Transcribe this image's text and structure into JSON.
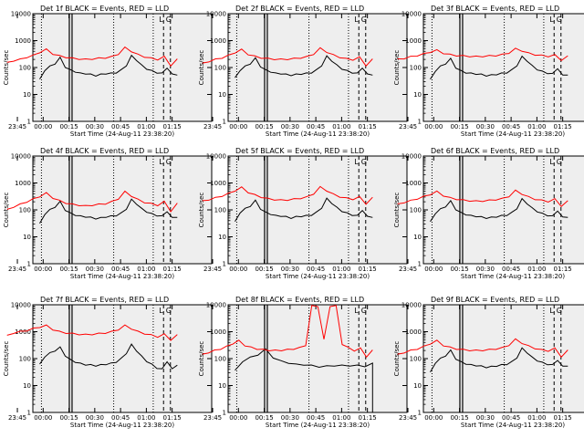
{
  "colors": {
    "panel_bg": "#eeeeee",
    "events": "#000000",
    "lld": "#ff0000",
    "frame": "#000000"
  },
  "x_ticks": [
    "23:45",
    "00:00",
    "00:15",
    "00:30",
    "00:45",
    "01:00",
    "01:15"
  ],
  "y_ticks": [
    "1",
    "10",
    "100",
    "1000",
    "10000"
  ],
  "chart_data": [
    {
      "type": "line",
      "title": "Det 1f BLACK = Events, RED = LLD",
      "xlabel": "Start Time (24-Aug-11 23:38:20)",
      "ylabel": "Counts/sec",
      "ylim": [
        1,
        10000
      ],
      "yscale": "log",
      "series": [
        {
          "name": "Events",
          "color": "black",
          "start": "23:58",
          "values": [
            35,
            80,
            110,
            140,
            230,
            105,
            80,
            70,
            60,
            60,
            55,
            50,
            55,
            60,
            60,
            65,
            80,
            120,
            270,
            190,
            120,
            90,
            75,
            65,
            60,
            100,
            55,
            55
          ]
        },
        {
          "name": "LLD",
          "color": "red",
          "start": "23:39",
          "values": [
            150,
            180,
            200,
            240,
            280,
            370,
            470,
            320,
            270,
            240,
            220,
            210,
            200,
            210,
            220,
            230,
            250,
            320,
            550,
            400,
            300,
            250,
            220,
            200,
            250,
            120,
            200
          ]
        }
      ],
      "annotations": {
        "vlines_dotted": [
          "23:59",
          "00:41",
          "01:04"
        ],
        "vlines_solid": [
          "00:16"
        ],
        "vlines_dashed": [
          "01:10",
          "01:14"
        ],
        "letters": [
          "L",
          "G"
        ]
      }
    },
    {
      "type": "line",
      "title": "Det 2f BLACK = Events, RED = LLD",
      "xlabel": "Start Time (24-Aug-11 23:38:20)",
      "ylabel": "Counts/sec",
      "ylim": [
        1,
        10000
      ],
      "yscale": "log",
      "series": [
        {
          "name": "Events",
          "color": "black",
          "start": "23:58",
          "values": [
            40,
            80,
            110,
            140,
            220,
            110,
            80,
            70,
            60,
            60,
            55,
            52,
            55,
            58,
            60,
            65,
            80,
            120,
            260,
            180,
            120,
            90,
            75,
            65,
            60,
            100,
            55,
            55
          ]
        },
        {
          "name": "LLD",
          "color": "red",
          "start": "23:39",
          "values": [
            140,
            170,
            200,
            230,
            280,
            360,
            460,
            310,
            260,
            230,
            215,
            205,
            200,
            205,
            215,
            230,
            250,
            320,
            520,
            380,
            290,
            240,
            210,
            195,
            240,
            120,
            200
          ]
        }
      ],
      "annotations": {
        "vlines_dotted": [
          "23:59",
          "00:41",
          "01:04"
        ],
        "vlines_solid": [
          "00:16"
        ],
        "vlines_dashed": [
          "01:10",
          "01:14"
        ],
        "letters": [
          "L",
          "G"
        ]
      }
    },
    {
      "type": "line",
      "title": "Det 3f BLACK = Events, RED = LLD",
      "xlabel": "Start Time (24-Aug-11 23:38:20)",
      "ylabel": "Counts/sec",
      "ylim": [
        1,
        10000
      ],
      "yscale": "log",
      "series": [
        {
          "name": "Events",
          "color": "black",
          "start": "23:58",
          "values": [
            35,
            75,
            110,
            140,
            210,
            100,
            75,
            65,
            60,
            58,
            55,
            50,
            52,
            56,
            60,
            65,
            80,
            120,
            250,
            180,
            115,
            85,
            70,
            62,
            58,
            95,
            50,
            55
          ]
        },
        {
          "name": "LLD",
          "color": "red",
          "start": "23:39",
          "values": [
            200,
            220,
            250,
            280,
            320,
            380,
            440,
            340,
            300,
            280,
            270,
            260,
            255,
            260,
            270,
            280,
            300,
            350,
            500,
            420,
            340,
            300,
            280,
            260,
            290,
            190,
            260
          ]
        }
      ],
      "annotations": {
        "vlines_dotted": [
          "23:59",
          "00:41",
          "01:04"
        ],
        "vlines_solid": [
          "00:16"
        ],
        "vlines_dashed": [
          "01:10",
          "01:14"
        ],
        "letters": [
          "L",
          "G"
        ]
      }
    },
    {
      "type": "line",
      "title": "Det 4f BLACK = Events, RED = LLD",
      "xlabel": "Start Time (24-Aug-11 23:38:20)",
      "ylabel": "Counts/sec",
      "ylim": [
        1,
        10000
      ],
      "yscale": "log",
      "series": [
        {
          "name": "Events",
          "color": "black",
          "start": "23:58",
          "values": [
            30,
            70,
            100,
            130,
            200,
            100,
            75,
            65,
            58,
            56,
            52,
            48,
            50,
            55,
            58,
            62,
            75,
            110,
            240,
            170,
            110,
            85,
            70,
            62,
            58,
            90,
            50,
            55
          ]
        },
        {
          "name": "LLD",
          "color": "red",
          "start": "23:39",
          "values": [
            100,
            130,
            160,
            200,
            250,
            320,
            420,
            280,
            220,
            180,
            160,
            150,
            140,
            150,
            160,
            170,
            200,
            260,
            470,
            330,
            240,
            190,
            170,
            150,
            200,
            90,
            170
          ]
        }
      ],
      "annotations": {
        "vlines_dotted": [
          "23:59",
          "00:41",
          "01:04"
        ],
        "vlines_solid": [
          "00:16"
        ],
        "vlines_dashed": [
          "01:10",
          "01:14"
        ],
        "letters": [
          "L",
          "G"
        ]
      }
    },
    {
      "type": "line",
      "title": "Det 5f BLACK = Events, RED = LLD",
      "xlabel": "Start Time (24-Aug-11 23:38:20)",
      "ylabel": "Counts/sec",
      "ylim": [
        1,
        10000
      ],
      "yscale": "log",
      "series": [
        {
          "name": "Events",
          "color": "black",
          "start": "23:58",
          "values": [
            35,
            80,
            110,
            140,
            220,
            110,
            80,
            70,
            60,
            60,
            55,
            50,
            55,
            58,
            60,
            65,
            80,
            120,
            260,
            180,
            120,
            90,
            75,
            65,
            60,
            100,
            55,
            55
          ]
        },
        {
          "name": "LLD",
          "color": "red",
          "start": "23:39",
          "values": [
            210,
            240,
            280,
            330,
            400,
            520,
            680,
            450,
            360,
            300,
            260,
            240,
            230,
            235,
            250,
            270,
            300,
            400,
            700,
            520,
            380,
            310,
            270,
            250,
            300,
            170,
            280
          ]
        }
      ],
      "annotations": {
        "vlines_dotted": [
          "23:59",
          "00:41",
          "01:04"
        ],
        "vlines_solid": [
          "00:16"
        ],
        "vlines_dashed": [
          "01:10",
          "01:14"
        ],
        "letters": [
          "L",
          "G"
        ]
      }
    },
    {
      "type": "line",
      "title": "Det 6f BLACK = Events, RED = LLD",
      "xlabel": "Start Time (24-Aug-11 23:38:20)",
      "ylabel": "Counts/sec",
      "ylim": [
        1,
        10000
      ],
      "yscale": "log",
      "series": [
        {
          "name": "Events",
          "color": "black",
          "start": "23:58",
          "values": [
            35,
            75,
            105,
            135,
            210,
            105,
            78,
            68,
            60,
            58,
            54,
            50,
            52,
            56,
            60,
            64,
            78,
            115,
            250,
            175,
            115,
            88,
            72,
            63,
            58,
            95,
            52,
            55
          ]
        },
        {
          "name": "LLD",
          "color": "red",
          "start": "23:39",
          "values": [
            160,
            190,
            220,
            260,
            310,
            380,
            480,
            340,
            280,
            250,
            230,
            220,
            210,
            215,
            225,
            240,
            260,
            320,
            520,
            390,
            300,
            250,
            225,
            205,
            250,
            140,
            210
          ]
        }
      ],
      "annotations": {
        "vlines_dotted": [
          "23:59",
          "00:41",
          "01:04"
        ],
        "vlines_solid": [
          "00:16"
        ],
        "vlines_dashed": [
          "01:10",
          "01:14"
        ],
        "letters": [
          "L",
          "G"
        ]
      }
    },
    {
      "type": "line",
      "title": "Det 7f BLACK = Events, RED = LLD",
      "xlabel": "Start Time (24-Aug-11 23:38:20)",
      "ylabel": "Counts/sec",
      "ylim": [
        1,
        10000
      ],
      "yscale": "log",
      "series": [
        {
          "name": "Events",
          "color": "black",
          "start": "23:58",
          "values": [
            60,
            120,
            160,
            200,
            260,
            130,
            90,
            75,
            65,
            60,
            58,
            55,
            58,
            62,
            66,
            75,
            100,
            160,
            330,
            200,
            120,
            80,
            60,
            45,
            40,
            80,
            40,
            60
          ]
        },
        {
          "name": "LLD",
          "color": "red",
          "start": "23:39",
          "values": [
            700,
            900,
            1000,
            1100,
            1300,
            1500,
            1700,
            1200,
            1000,
            900,
            850,
            800,
            780,
            800,
            850,
            900,
            1000,
            1200,
            1700,
            1300,
            1000,
            850,
            750,
            650,
            800,
            500,
            750
          ]
        }
      ],
      "annotations": {
        "vlines_dotted": [
          "23:59",
          "00:41",
          "01:04"
        ],
        "vlines_solid": [
          "00:16"
        ],
        "vlines_dashed": [
          "01:10",
          "01:14"
        ],
        "letters": [
          "L",
          "G"
        ]
      }
    },
    {
      "type": "line",
      "title": "Det 8f BLACK = Events, RED = LLD",
      "xlabel": "Start Time (24-Aug-11 23:38:20)",
      "ylabel": "Counts/sec",
      "ylim": [
        1,
        10000
      ],
      "yscale": "log",
      "series": [
        {
          "name": "Events",
          "color": "black",
          "start": "23:58",
          "values": [
            35,
            80,
            110,
            140,
            220,
            110,
            80,
            70,
            60,
            60,
            55,
            50,
            52,
            55,
            55,
            55,
            55,
            52,
            65
          ]
        },
        {
          "name": "LLD",
          "color": "red",
          "start": "23:39",
          "values": [
            140,
            170,
            200,
            230,
            280,
            360,
            460,
            310,
            260,
            230,
            215,
            205,
            200,
            205,
            215,
            230,
            250,
            320,
            9000,
            9000,
            500,
            9000,
            9000,
            350,
            250,
            200,
            240,
            120,
            200
          ]
        }
      ],
      "annotations": {
        "vlines_dotted": [
          "23:59",
          "00:41",
          "01:04"
        ],
        "vlines_solid": [
          "00:16"
        ],
        "vlines_dashed": [
          "01:10",
          "01:14"
        ],
        "letters": [
          "L",
          "G"
        ]
      }
    },
    {
      "type": "line",
      "title": "Det 9f BLACK = Events, RED = LLD",
      "xlabel": "Start Time (24-Aug-11 23:38:20)",
      "ylabel": "Counts/sec",
      "ylim": [
        1,
        10000
      ],
      "yscale": "log",
      "series": [
        {
          "name": "Events",
          "color": "black",
          "start": "23:58",
          "values": [
            30,
            70,
            100,
            130,
            200,
            100,
            75,
            65,
            58,
            56,
            52,
            48,
            50,
            54,
            58,
            62,
            75,
            110,
            240,
            170,
            110,
            85,
            70,
            62,
            58,
            90,
            50,
            55
          ]
        },
        {
          "name": "LLD",
          "color": "red",
          "start": "23:39",
          "values": [
            140,
            170,
            200,
            230,
            280,
            360,
            460,
            310,
            260,
            230,
            215,
            205,
            200,
            205,
            215,
            230,
            250,
            320,
            520,
            380,
            290,
            240,
            210,
            195,
            240,
            120,
            200
          ]
        }
      ],
      "annotations": {
        "vlines_dotted": [
          "23:59",
          "00:41",
          "01:04"
        ],
        "vlines_solid": [
          "00:16"
        ],
        "vlines_dashed": [
          "01:10",
          "01:14"
        ],
        "letters": [
          "L",
          "G"
        ]
      }
    }
  ]
}
